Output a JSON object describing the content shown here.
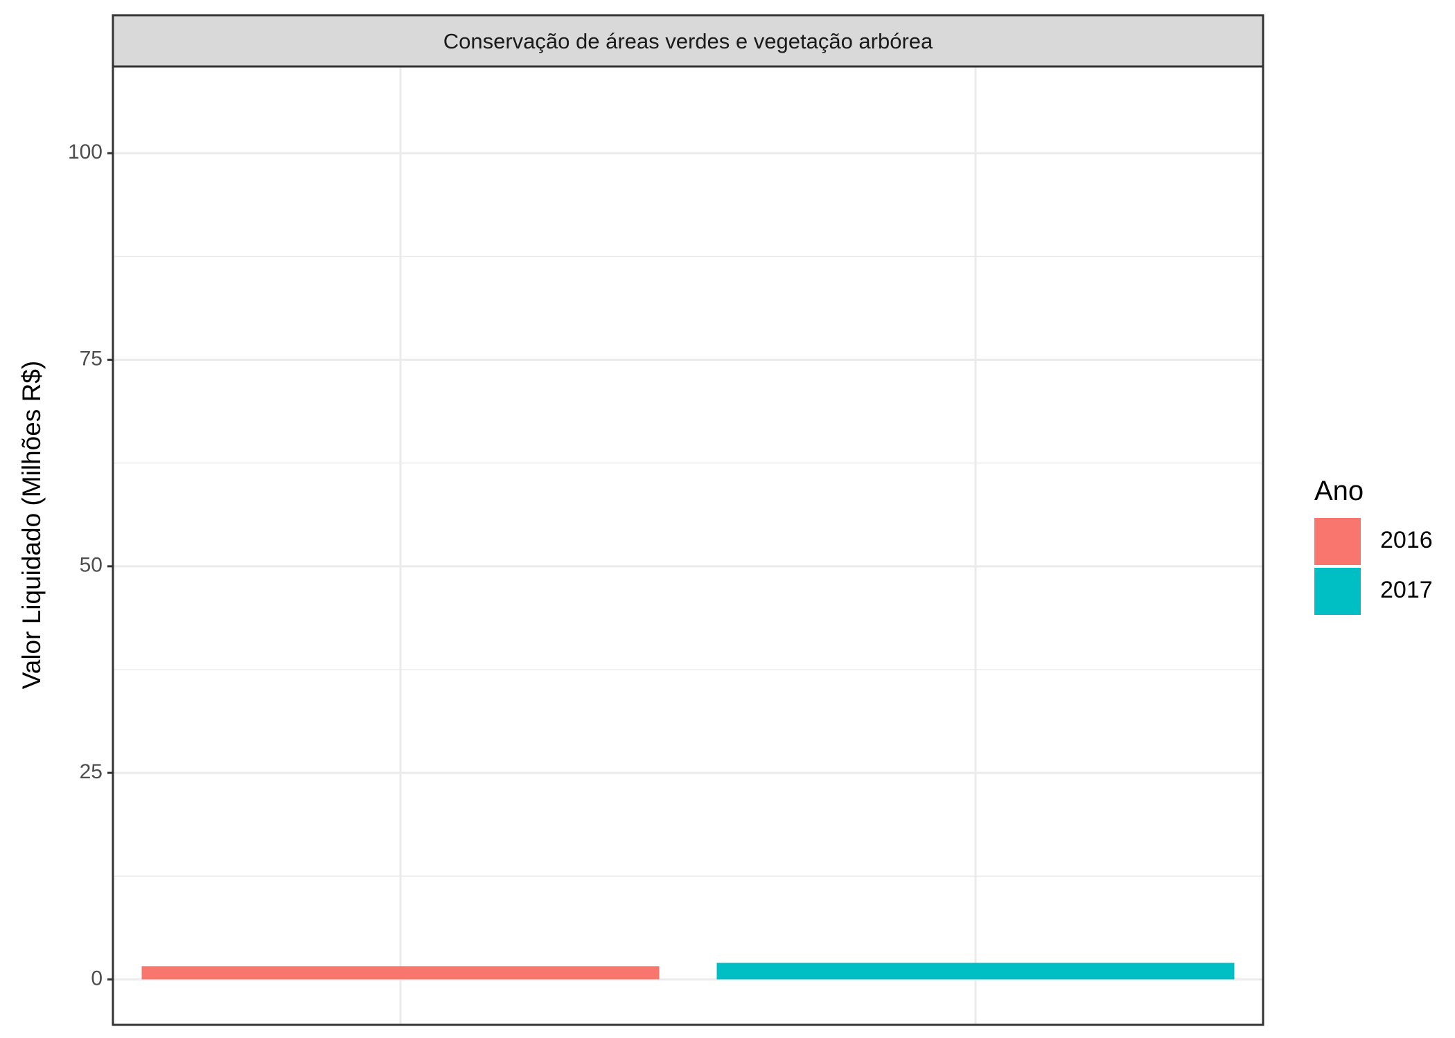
{
  "chart_data": {
    "type": "bar",
    "facet_title": "Conservação de áreas verdes e vegetação arbórea",
    "xlabel": "",
    "ylabel": "Valor Liquidado (Milhões R$)",
    "ylim": [
      -5.5,
      110.5
    ],
    "yticks": [
      0,
      25,
      50,
      75,
      100
    ],
    "ytick_labels": [
      "0",
      "25",
      "50",
      "75",
      "100"
    ],
    "grid": true,
    "legend": {
      "title": "Ano",
      "placement": "right"
    },
    "series": [
      {
        "name": "2016",
        "value": 1.6,
        "color": "#F8766D"
      },
      {
        "name": "2017",
        "value": 2.0,
        "color": "#00BFC4"
      }
    ]
  }
}
